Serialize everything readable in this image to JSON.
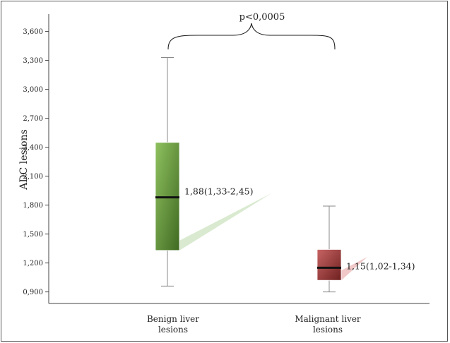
{
  "chart_data": {
    "type": "boxplot",
    "ylabel": "ADC lesions",
    "ylim": [
      0.78,
      3.78
    ],
    "yticks": [
      0.9,
      1.2,
      1.5,
      1.8,
      2.1,
      2.4,
      2.7,
      3.0,
      3.3,
      3.6
    ],
    "ytick_labels": [
      "0,900",
      "1,200",
      "1,500",
      "1,800",
      "2,100",
      "2,400",
      "2,700",
      "3,000",
      "3,300",
      "3,600"
    ],
    "categories": [
      {
        "label_lines": [
          "Benign liver",
          "lesions"
        ]
      },
      {
        "label_lines": [
          "Malignant liver",
          "lesions"
        ]
      }
    ],
    "boxes": [
      {
        "min": 0.96,
        "q1": 1.33,
        "median": 1.88,
        "q3": 2.45,
        "max": 3.33,
        "annotation": "1,88(1,33-2,45)",
        "color_light": "#8fc15f",
        "color_dark": "#3f6a22",
        "callout_color": "#d9ead0"
      },
      {
        "min": 0.9,
        "q1": 1.02,
        "median": 1.15,
        "q3": 1.34,
        "max": 1.79,
        "annotation": "1,15(1,02-1,34)",
        "color_light": "#c86464",
        "color_dark": "#6e1f1f",
        "callout_color": "#f0c8c8"
      }
    ],
    "significance": "p<0,0005",
    "grid": false
  }
}
